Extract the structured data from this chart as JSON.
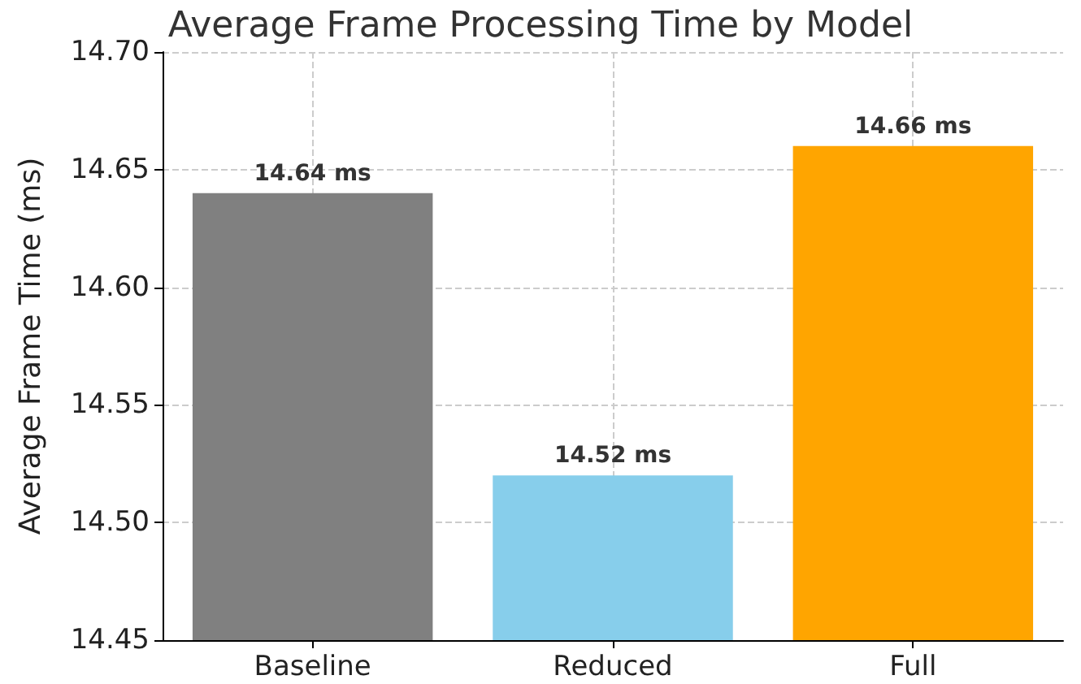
{
  "chart_data": {
    "type": "bar",
    "title": "Average Frame Processing Time by Model",
    "ylabel": "Average Frame Time (ms)",
    "categories": [
      "Baseline",
      "Reduced",
      "Full"
    ],
    "values": [
      14.64,
      14.52,
      14.66
    ],
    "colors": [
      "#808080",
      "#87ceeb",
      "#ffa500"
    ],
    "value_labels": [
      "14.64 ms",
      "14.52 ms",
      "14.66 ms"
    ],
    "ylim": [
      14.45,
      14.7
    ],
    "yticks": [
      {
        "value": 14.45,
        "label": "14.45"
      },
      {
        "value": 14.5,
        "label": "14.50"
      },
      {
        "value": 14.55,
        "label": "14.55"
      },
      {
        "value": 14.6,
        "label": "14.60"
      },
      {
        "value": 14.65,
        "label": "14.65"
      },
      {
        "value": 14.7,
        "label": "14.70"
      }
    ],
    "grid": true
  }
}
